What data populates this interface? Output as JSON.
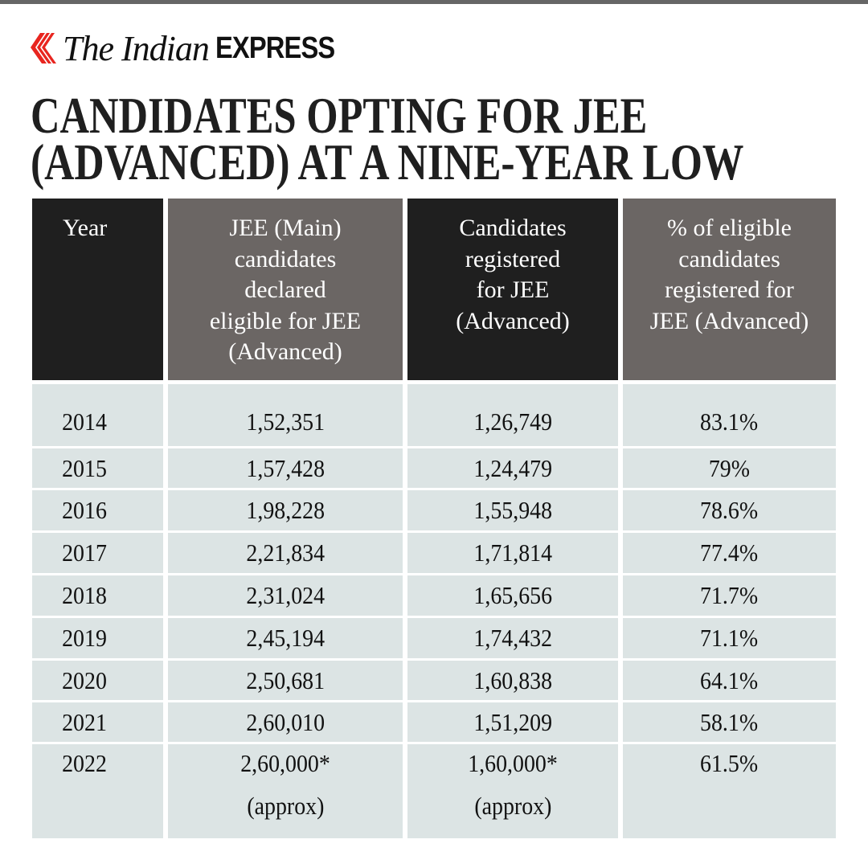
{
  "brand": {
    "name_italic": "The Indian",
    "name_bold": "EXPRESS",
    "accent_color": "#e8251f"
  },
  "title": {
    "line1": "CANDIDATES OPTING FOR JEE",
    "line2": "(ADVANCED) AT A NINE-YEAR LOW"
  },
  "colors": {
    "header_dark": "#1f1f1f",
    "header_gray": "#6b6664",
    "body_bg": "#dce4e4"
  },
  "chart_data": {
    "type": "table",
    "title": "CANDIDATES OPTING FOR JEE (ADVANCED) AT A NINE-YEAR LOW",
    "columns": [
      "Year",
      "JEE (Main) candidates declared eligible for JEE (Advanced)",
      "Candidates registered for JEE (Advanced)",
      "% of eligible candidates registered for JEE (Advanced)"
    ],
    "rows": [
      [
        "2014",
        "1,52,351",
        "1,26,749",
        "83.1%"
      ],
      [
        "2015",
        "1,57,428",
        "1,24,479",
        "79%"
      ],
      [
        "2016",
        "1,98,228",
        "1,55,948",
        "78.6%"
      ],
      [
        "2017",
        "2,21,834",
        "1,71,814",
        "77.4%"
      ],
      [
        "2018",
        "2,31,024",
        "1,65,656",
        "71.7%"
      ],
      [
        "2019",
        "2,45,194",
        "1,74,432",
        "71.1%"
      ],
      [
        "2020",
        "2,50,681",
        "1,60,838",
        "64.1%"
      ],
      [
        "2021",
        "2,60,010",
        "1,51,209",
        "58.1%"
      ],
      [
        "2022",
        "2,60,000*",
        "1,60,000*",
        "61.5%"
      ]
    ],
    "row_notes": {
      "2022": [
        "",
        "(approx)",
        "(approx)",
        ""
      ]
    }
  }
}
